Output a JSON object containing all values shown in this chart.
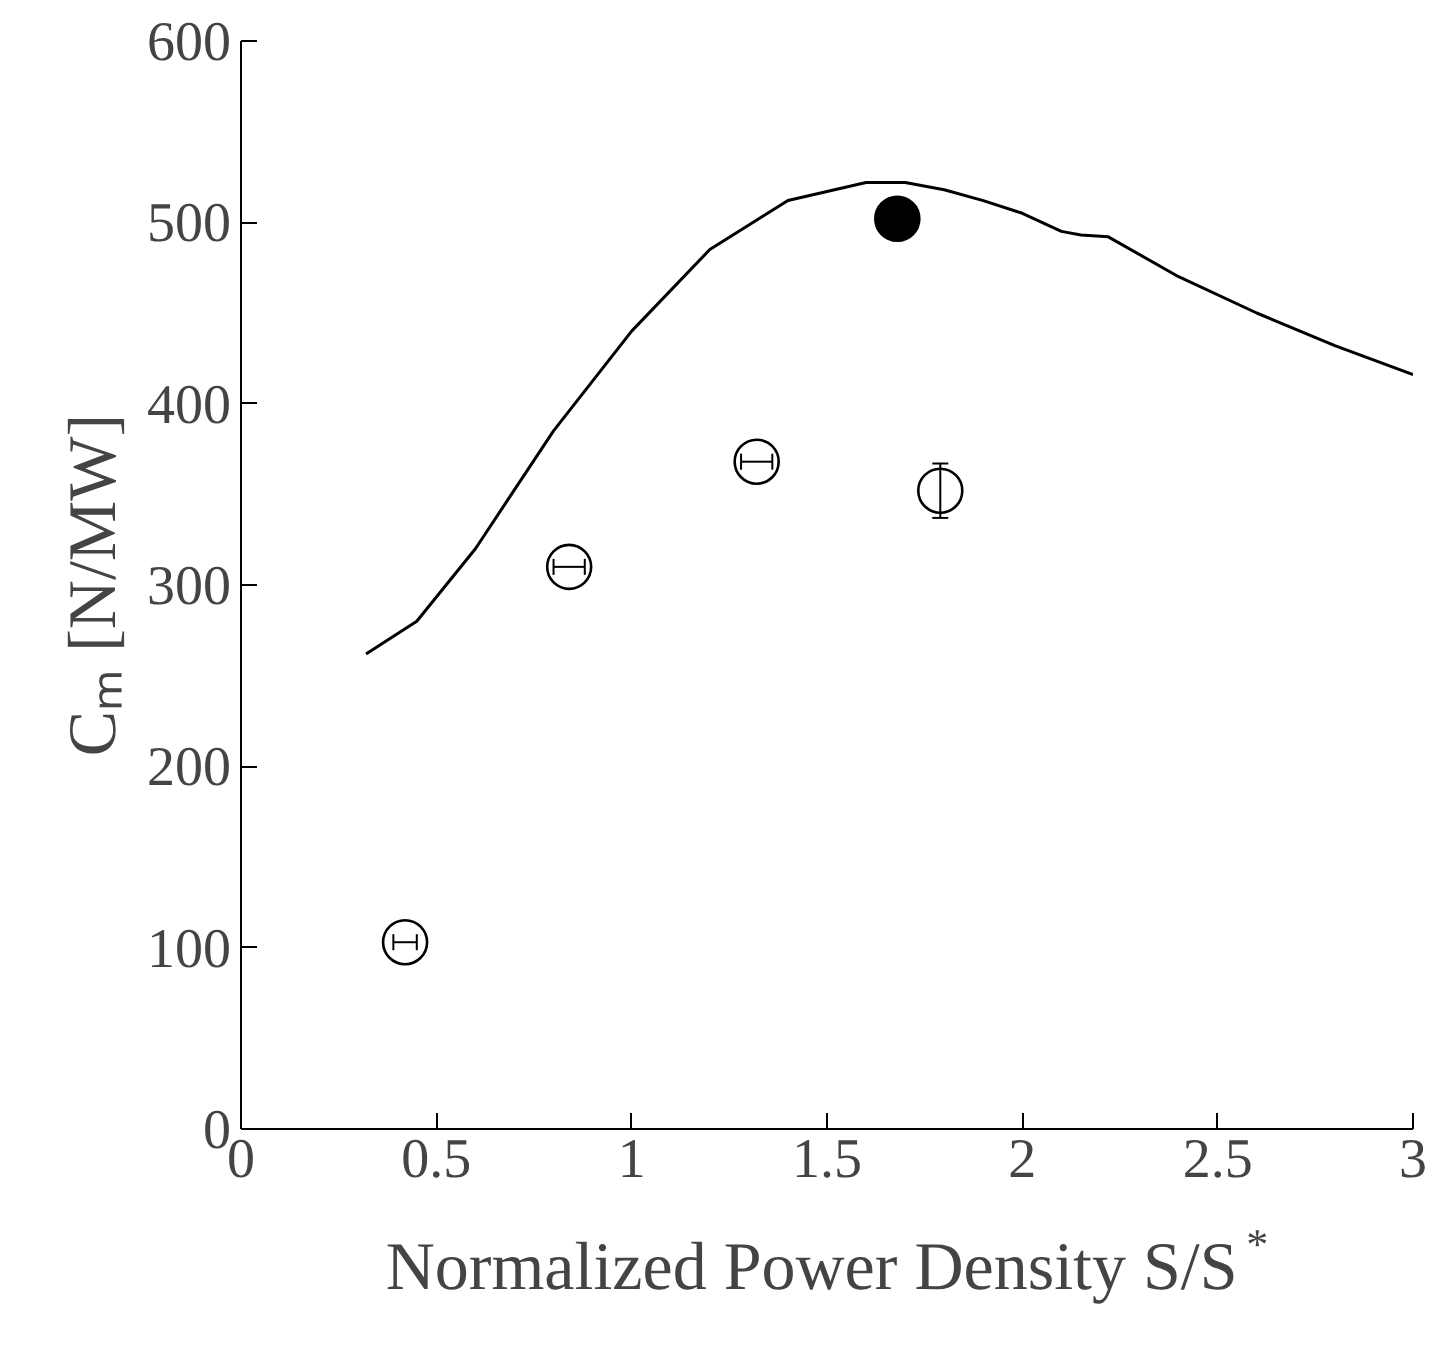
{
  "chart_data": {
    "type": "line",
    "xlabel": "Normalized Power Density S/S$^{*}$",
    "ylabel": "Cₘ [N/MW]",
    "xlim": [
      0,
      3
    ],
    "ylim": [
      0,
      600
    ],
    "xticks": [
      0,
      0.5,
      1,
      1.5,
      2,
      2.5,
      3
    ],
    "yticks": [
      0,
      100,
      200,
      300,
      400,
      500,
      600
    ],
    "grid": false,
    "series": [
      {
        "color": "#000000",
        "line_style": "solid",
        "x": [
          0.32,
          0.45,
          0.6,
          0.8,
          1.0,
          1.2,
          1.4,
          1.6,
          1.7,
          1.8,
          1.9,
          2.0,
          2.1,
          2.15,
          2.22,
          2.4,
          2.6,
          2.8,
          3.0
        ],
        "values": [
          262,
          280,
          320,
          385,
          440,
          485,
          512,
          522,
          522,
          518,
          512,
          505,
          495,
          493,
          492,
          470,
          450,
          432,
          416
        ]
      },
      {
        "type": "scatter",
        "marker": "circle",
        "color": "#ffffff",
        "x": [
          0.42,
          0.84,
          1.32,
          1.79
        ],
        "values": [
          103,
          310,
          368,
          352
        ],
        "xerrors": [
          0.03,
          0.04,
          0.04,
          null
        ],
        "errors": [
          null,
          null,
          null,
          15
        ]
      },
      {
        "type": "scatter",
        "marker": "circle",
        "color": "#000000",
        "x": [
          1.68
        ],
        "values": [
          502
        ],
        "errors": [
          10
        ]
      }
    ]
  }
}
